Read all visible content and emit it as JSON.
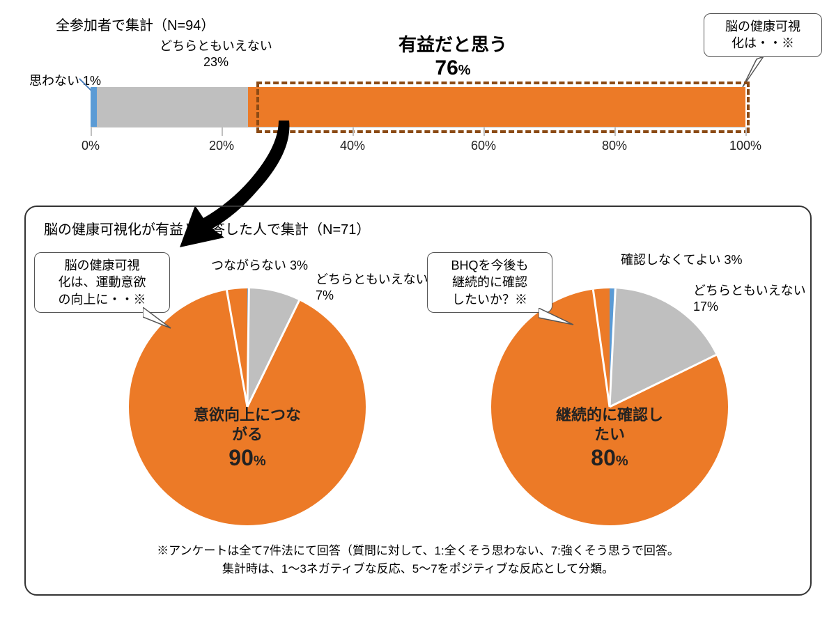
{
  "colors": {
    "orange": "#ec7a27",
    "gray": "#bfbfbf",
    "blue": "#5b9bd5",
    "dash_border": "#8b4a14",
    "axis": "#bfbfbf",
    "text": "#222222",
    "panel_border": "#333333",
    "bg": "#ffffff"
  },
  "bar_chart": {
    "title": "全参加者で集計（N=94）",
    "segments": [
      {
        "key": "negative",
        "label": "思わない 1%",
        "value": 1,
        "color": "#5b9bd5"
      },
      {
        "key": "neutral",
        "label_line1": "どちらともいえない",
        "label_line2": "23%",
        "value": 23,
        "color": "#bfbfbf"
      },
      {
        "key": "positive",
        "label_line1": "有益だと思う",
        "label_value": "76",
        "label_pct": "%",
        "value": 76,
        "color": "#ec7a27"
      }
    ],
    "axis": {
      "min": 0,
      "max": 100,
      "ticks": [
        0,
        20,
        40,
        60,
        80,
        100
      ],
      "suffix": "%"
    },
    "callout": {
      "line1": "脳の健康可視",
      "line2": "化は・・※"
    },
    "dash_range": {
      "from_pct": 26,
      "to_pct": 100
    }
  },
  "panel": {
    "title": "脳の健康可視化が有益と回答した人で集計（N=71）",
    "pies": [
      {
        "id": "pie-motivation",
        "callout": {
          "line1": "脳の健康可視",
          "line2": "化は、運動意欲",
          "line3": "の向上に・・※"
        },
        "slices": [
          {
            "key": "no",
            "label": "つながらない 3%",
            "value": 3,
            "color": "#5b9bd5"
          },
          {
            "key": "neutral",
            "label_line1": "どちらともいえない",
            "label_line2": "7%",
            "value": 7,
            "color": "#bfbfbf"
          },
          {
            "key": "yes",
            "center_line1": "意欲向上につながる",
            "center_value": "90",
            "center_pct": "%",
            "value": 90,
            "color": "#ec7a27"
          }
        ],
        "start_angle_deg": -10
      },
      {
        "id": "pie-continue",
        "callout": {
          "line1": "BHQを今後も",
          "line2": "継続的に確認",
          "line3": "したいか？※"
        },
        "slices": [
          {
            "key": "no",
            "label": "確認しなくてよい 3%",
            "value": 3,
            "color": "#5b9bd5"
          },
          {
            "key": "neutral",
            "label_line1": "どちらともいえない",
            "label_line2": "17%",
            "value": 17,
            "color": "#bfbfbf"
          },
          {
            "key": "yes",
            "center_line1": "継続的に確認したい",
            "center_value": "80",
            "center_pct": "%",
            "value": 80,
            "color": "#ec7a27"
          }
        ],
        "start_angle_deg": -8
      }
    ],
    "footnote_line1": "※アンケートは全て7件法にて回答（質問に対して、1:全くそう思わない、7:強くそう思うで回答。",
    "footnote_line2": "集計時は、1～3ネガティブな反応、5～7をポジティブな反応として分類。"
  }
}
